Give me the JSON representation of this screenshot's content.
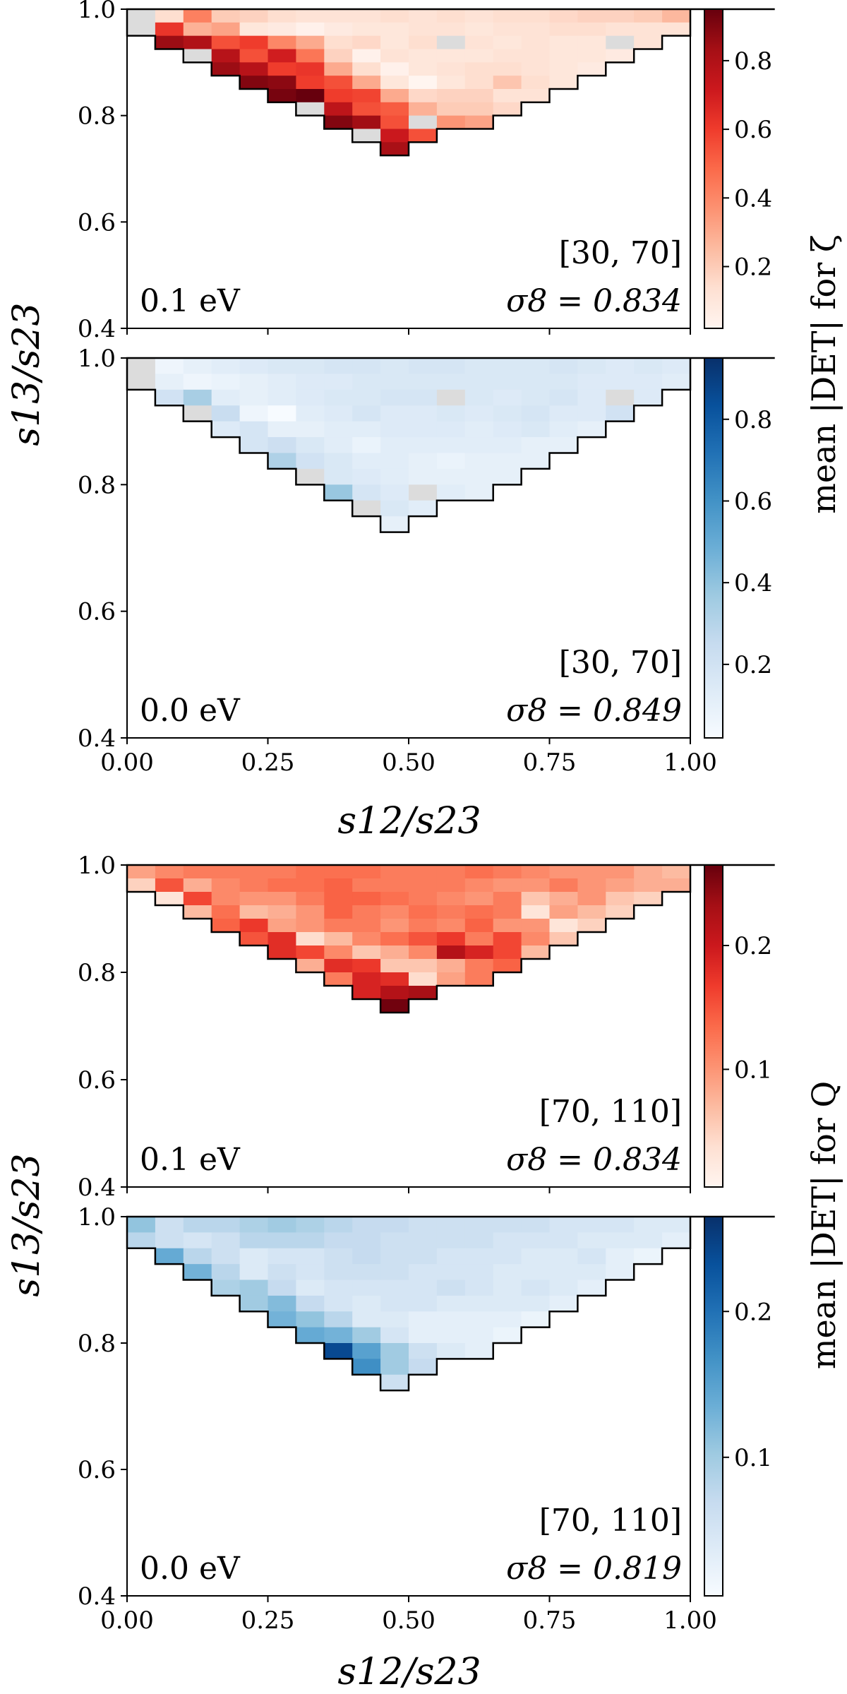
{
  "figure": {
    "x_axis_label": "s12/s23",
    "y_axis_label": "s13/s23",
    "xticks": [
      "0.00",
      "0.25",
      "0.50",
      "0.75",
      "1.00"
    ],
    "yticks": [
      "0.4",
      "0.6",
      "0.8",
      "1.0"
    ],
    "colors": {
      "red_low": "#fff5f0",
      "red_high": "#67000d",
      "blue_low": "#f7fbff",
      "blue_high": "#08306b",
      "nan": "#dcdcdc",
      "frame": "#000000"
    }
  },
  "chart_data": [
    {
      "type": "heatmap",
      "id": "zeta-0.1",
      "cmap": "red",
      "x_range": [
        0,
        1
      ],
      "y_range": [
        0.4,
        1.0
      ],
      "bin_width": 0.05,
      "bin_height": 0.025,
      "clim": [
        0.02,
        0.95
      ],
      "mass_label": "0.1 eV",
      "bin_label": "[30, 70]",
      "sigma_label": "σ8 = 0.834",
      "colorbar": {
        "ticks": [
          "0.2",
          "0.4",
          "0.6",
          "0.8"
        ],
        "tick_values": [
          0.2,
          0.4,
          0.6,
          0.8
        ]
      },
      "rows": [
        {
          "y": 0.9875,
          "x0": 0.0,
          "v": [
            null,
            0.14,
            0.42,
            0.2,
            0.18,
            0.14,
            0.12,
            0.12,
            0.12,
            0.14,
            0.12,
            0.14,
            0.12,
            0.14,
            0.14,
            0.16,
            0.18,
            0.18,
            0.2,
            0.26,
            0.22,
            0.18,
            0.2
          ]
        },
        {
          "y": 0.9625,
          "x0": 0.0,
          "v": [
            null,
            0.62,
            0.28,
            0.32,
            0.1,
            0.08,
            0.04,
            0.08,
            0.1,
            0.1,
            0.12,
            0.12,
            0.1,
            0.12,
            0.12,
            0.14,
            0.14,
            0.12,
            0.12,
            0.12,
            0.12,
            0.12,
            0.14,
            0.2
          ]
        },
        {
          "y": 0.9375,
          "x0": 0.05,
          "v": [
            0.85,
            0.8,
            0.55,
            0.6,
            0.4,
            0.3,
            0.14,
            0.16,
            0.1,
            0.14,
            null,
            0.12,
            0.1,
            0.12,
            0.1,
            0.1,
            null,
            0.12
          ]
        },
        {
          "y": 0.9125,
          "x0": 0.1,
          "v": [
            null,
            0.78,
            0.55,
            0.7,
            0.45,
            0.18,
            0.04,
            0.12,
            0.1,
            0.1,
            0.1,
            0.12,
            0.12,
            0.1,
            0.1,
            0.08
          ]
        },
        {
          "y": 0.8875,
          "x0": 0.15,
          "v": [
            0.85,
            0.78,
            0.6,
            0.62,
            0.3,
            0.14,
            0.04,
            0.1,
            0.12,
            0.14,
            0.14,
            0.12,
            0.1,
            0.08
          ]
        },
        {
          "y": 0.8625,
          "x0": 0.2,
          "v": [
            0.9,
            0.88,
            0.6,
            0.55,
            0.3,
            0.1,
            0.02,
            0.1,
            0.14,
            0.22,
            0.14,
            0.1
          ]
        },
        {
          "y": 0.8375,
          "x0": 0.25,
          "v": [
            0.92,
            0.95,
            0.6,
            0.58,
            0.3,
            0.16,
            0.18,
            0.18,
            0.12,
            0.12
          ]
        },
        {
          "y": 0.8125,
          "x0": 0.3,
          "v": [
            null,
            0.76,
            0.55,
            0.52,
            0.28,
            0.2,
            0.2,
            0.16
          ]
        },
        {
          "y": 0.7875,
          "x0": 0.35,
          "v": [
            0.9,
            0.84,
            0.55,
            null,
            0.36,
            0.32
          ]
        },
        {
          "y": 0.7625,
          "x0": 0.4,
          "v": [
            null,
            0.72,
            0.55
          ]
        },
        {
          "y": 0.7375,
          "x0": 0.45,
          "v": [
            0.82
          ]
        }
      ]
    },
    {
      "type": "heatmap",
      "id": "zeta-0.0",
      "cmap": "blue",
      "x_range": [
        0,
        1
      ],
      "y_range": [
        0.4,
        1.0
      ],
      "bin_width": 0.05,
      "bin_height": 0.025,
      "clim": [
        0.02,
        0.95
      ],
      "mass_label": "0.0 eV",
      "bin_label": "[30, 70]",
      "sigma_label": "σ8 = 0.849",
      "colorbar": {
        "ticks": [
          "0.2",
          "0.4",
          "0.6",
          "0.8"
        ],
        "tick_values": [
          0.2,
          0.4,
          0.6,
          0.8
        ]
      },
      "rows": [
        {
          "y": 0.9875,
          "x0": 0.0,
          "v": [
            null,
            0.06,
            0.1,
            0.12,
            0.14,
            0.16,
            0.16,
            0.18,
            0.18,
            0.16,
            0.18,
            0.18,
            0.16,
            0.16,
            0.16,
            0.18,
            0.16,
            0.14,
            0.16,
            0.14,
            0.14,
            0.12,
            0.1
          ]
        },
        {
          "y": 0.9625,
          "x0": 0.0,
          "v": [
            null,
            0.1,
            0.06,
            0.08,
            0.1,
            0.12,
            0.14,
            0.14,
            0.16,
            0.16,
            0.16,
            0.16,
            0.16,
            0.16,
            0.16,
            0.16,
            0.14,
            0.14,
            0.14,
            0.12,
            0.12,
            0.12,
            0.1,
            0.1
          ]
        },
        {
          "y": 0.9375,
          "x0": 0.05,
          "v": [
            0.2,
            0.34,
            0.12,
            0.1,
            0.12,
            0.14,
            0.16,
            0.16,
            0.18,
            0.18,
            null,
            0.16,
            0.14,
            0.16,
            0.18,
            0.14,
            null,
            0.14
          ]
        },
        {
          "y": 0.9125,
          "x0": 0.1,
          "v": [
            null,
            0.24,
            0.06,
            0.02,
            0.12,
            0.14,
            0.18,
            0.14,
            0.14,
            0.16,
            0.14,
            0.16,
            0.18,
            0.14,
            0.14,
            0.2
          ]
        },
        {
          "y": 0.8875,
          "x0": 0.15,
          "v": [
            0.14,
            0.18,
            0.1,
            0.1,
            0.12,
            0.12,
            0.14,
            0.14,
            0.14,
            0.12,
            0.14,
            0.16,
            0.12,
            0.1
          ]
        },
        {
          "y": 0.8625,
          "x0": 0.2,
          "v": [
            0.18,
            0.22,
            0.16,
            0.12,
            0.08,
            0.12,
            0.12,
            0.12,
            0.12,
            0.12,
            0.1,
            0.1
          ]
        },
        {
          "y": 0.8375,
          "x0": 0.25,
          "v": [
            0.32,
            0.2,
            0.16,
            0.12,
            0.12,
            0.1,
            0.08,
            0.1,
            0.1,
            0.1
          ]
        },
        {
          "y": 0.8125,
          "x0": 0.3,
          "v": [
            null,
            0.16,
            0.14,
            0.12,
            0.1,
            0.1,
            0.1,
            0.1
          ]
        },
        {
          "y": 0.7875,
          "x0": 0.35,
          "v": [
            0.38,
            0.18,
            0.14,
            null,
            0.12,
            0.1
          ]
        },
        {
          "y": 0.7625,
          "x0": 0.4,
          "v": [
            null,
            0.16,
            0.12
          ]
        },
        {
          "y": 0.7375,
          "x0": 0.45,
          "v": [
            0.1
          ]
        }
      ]
    },
    {
      "type": "heatmap",
      "id": "Q-0.1",
      "cmap": "red",
      "x_range": [
        0,
        1
      ],
      "y_range": [
        0.4,
        1.0
      ],
      "bin_width": 0.05,
      "bin_height": 0.025,
      "clim": [
        0.005,
        0.265
      ],
      "mass_label": "0.1 eV",
      "bin_label": "[70, 110]",
      "sigma_label": "σ8 = 0.834",
      "colorbar": {
        "ticks": [
          "0.1",
          "0.2"
        ],
        "tick_values": [
          0.1,
          0.2
        ]
      },
      "rows": [
        {
          "y": 0.9875,
          "x0": 0.0,
          "v": [
            0.09,
            0.11,
            0.12,
            0.12,
            0.12,
            0.12,
            0.13,
            0.13,
            0.13,
            0.12,
            0.12,
            0.12,
            0.13,
            0.12,
            0.11,
            0.1,
            0.1,
            0.1,
            0.08,
            0.07,
            0.06,
            0.07,
            0.07
          ]
        },
        {
          "y": 0.9625,
          "x0": 0.0,
          "v": [
            0.05,
            0.15,
            0.08,
            0.11,
            0.12,
            0.13,
            0.13,
            0.14,
            0.12,
            0.12,
            0.12,
            0.12,
            0.11,
            0.1,
            0.1,
            0.12,
            0.1,
            0.09,
            0.08,
            0.08,
            0.07,
            0.07,
            0.06,
            0.05
          ]
        },
        {
          "y": 0.9375,
          "x0": 0.05,
          "v": [
            0.03,
            0.16,
            0.11,
            0.1,
            0.1,
            0.12,
            0.14,
            0.14,
            0.13,
            0.12,
            0.11,
            0.1,
            0.12,
            0.06,
            0.08,
            0.1,
            0.06,
            0.05
          ]
        },
        {
          "y": 0.9125,
          "x0": 0.1,
          "v": [
            0.07,
            0.13,
            0.07,
            0.08,
            0.1,
            0.14,
            0.12,
            0.11,
            0.13,
            0.12,
            0.13,
            0.12,
            0.03,
            0.09,
            0.07,
            0.05
          ]
        },
        {
          "y": 0.8875,
          "x0": 0.15,
          "v": [
            0.14,
            0.17,
            0.09,
            0.1,
            0.12,
            0.12,
            0.1,
            0.12,
            0.11,
            0.14,
            0.1,
            0.1,
            0.03,
            0.05
          ]
        },
        {
          "y": 0.8625,
          "x0": 0.2,
          "v": [
            0.15,
            0.18,
            0.04,
            0.07,
            0.11,
            0.13,
            0.15,
            0.17,
            0.12,
            0.16,
            0.11,
            0.06
          ]
        },
        {
          "y": 0.8375,
          "x0": 0.25,
          "v": [
            0.18,
            0.16,
            0.11,
            0.06,
            0.08,
            0.11,
            0.22,
            0.19,
            0.16,
            0.07
          ]
        },
        {
          "y": 0.8125,
          "x0": 0.3,
          "v": [
            0.08,
            0.18,
            0.17,
            0.06,
            0.06,
            0.08,
            0.12,
            0.14
          ]
        },
        {
          "y": 0.7875,
          "x0": 0.35,
          "v": [
            0.12,
            0.19,
            0.18,
            0.04,
            0.09,
            0.12
          ]
        },
        {
          "y": 0.7625,
          "x0": 0.4,
          "v": [
            0.19,
            0.22,
            0.23
          ]
        },
        {
          "y": 0.7375,
          "x0": 0.45,
          "v": [
            0.26
          ]
        }
      ]
    },
    {
      "type": "heatmap",
      "id": "Q-0.0",
      "cmap": "blue",
      "x_range": [
        0,
        1
      ],
      "y_range": [
        0.4,
        1.0
      ],
      "bin_width": 0.05,
      "bin_height": 0.025,
      "clim": [
        0.005,
        0.265
      ],
      "mass_label": "0.0 eV",
      "bin_label": "[70, 110]",
      "sigma_label": "σ8 = 0.819",
      "colorbar": {
        "ticks": [
          "0.1",
          "0.2"
        ],
        "tick_values": [
          0.1,
          0.2
        ]
      },
      "rows": [
        {
          "y": 0.9875,
          "x0": 0.0,
          "v": [
            0.11,
            0.06,
            0.08,
            0.08,
            0.09,
            0.1,
            0.09,
            0.08,
            0.07,
            0.07,
            0.06,
            0.06,
            0.06,
            0.06,
            0.06,
            0.05,
            0.05,
            0.05,
            0.04,
            0.04,
            0.04,
            0.03,
            0.02
          ]
        },
        {
          "y": 0.9625,
          "x0": 0.0,
          "v": [
            0.08,
            0.06,
            0.05,
            0.06,
            0.08,
            0.08,
            0.08,
            0.07,
            0.07,
            0.06,
            0.06,
            0.06,
            0.06,
            0.05,
            0.05,
            0.05,
            0.04,
            0.04,
            0.04,
            0.03,
            0.03,
            0.03,
            0.02,
            0.02
          ]
        },
        {
          "y": 0.9375,
          "x0": 0.05,
          "v": [
            0.14,
            0.08,
            0.06,
            0.04,
            0.05,
            0.05,
            0.06,
            0.07,
            0.06,
            0.06,
            0.05,
            0.05,
            0.05,
            0.04,
            0.04,
            0.05,
            0.03,
            0.02
          ]
        },
        {
          "y": 0.9125,
          "x0": 0.1,
          "v": [
            0.13,
            0.08,
            0.04,
            0.06,
            0.05,
            0.06,
            0.06,
            0.06,
            0.05,
            0.05,
            0.05,
            0.04,
            0.04,
            0.04,
            0.04,
            0.03
          ]
        },
        {
          "y": 0.8875,
          "x0": 0.15,
          "v": [
            0.09,
            0.1,
            0.07,
            0.04,
            0.05,
            0.05,
            0.05,
            0.05,
            0.06,
            0.05,
            0.04,
            0.05,
            0.04,
            0.03
          ]
        },
        {
          "y": 0.8625,
          "x0": 0.2,
          "v": [
            0.1,
            0.12,
            0.07,
            0.05,
            0.04,
            0.05,
            0.05,
            0.04,
            0.04,
            0.04,
            0.04,
            0.03
          ]
        },
        {
          "y": 0.8375,
          "x0": 0.25,
          "v": [
            0.13,
            0.11,
            0.08,
            0.04,
            0.04,
            0.03,
            0.03,
            0.03,
            0.03,
            0.02
          ]
        },
        {
          "y": 0.8125,
          "x0": 0.3,
          "v": [
            0.14,
            0.13,
            0.1,
            0.05,
            0.03,
            0.03,
            0.03,
            0.02
          ]
        },
        {
          "y": 0.7875,
          "x0": 0.35,
          "v": [
            0.24,
            0.15,
            0.1,
            0.06,
            0.04,
            0.03
          ]
        },
        {
          "y": 0.7625,
          "x0": 0.4,
          "v": [
            0.17,
            0.1,
            0.07
          ]
        },
        {
          "y": 0.7375,
          "x0": 0.45,
          "v": [
            0.06
          ]
        }
      ]
    }
  ],
  "colorbars": [
    {
      "id": "zeta",
      "label": "mean |DET| for ζ"
    },
    {
      "id": "Q",
      "label": "mean |DET| for Q"
    }
  ]
}
